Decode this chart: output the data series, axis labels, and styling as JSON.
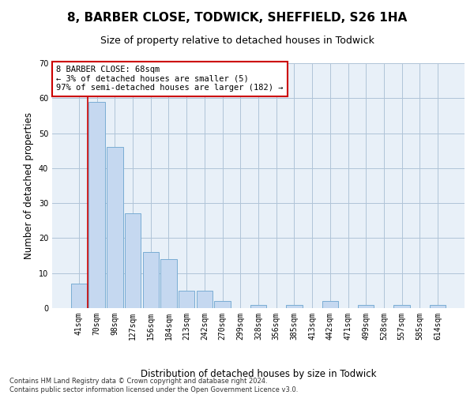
{
  "title": "8, BARBER CLOSE, TODWICK, SHEFFIELD, S26 1HA",
  "subtitle": "Size of property relative to detached houses in Todwick",
  "xlabel": "Distribution of detached houses by size in Todwick",
  "ylabel": "Number of detached properties",
  "categories": [
    "41sqm",
    "70sqm",
    "98sqm",
    "127sqm",
    "156sqm",
    "184sqm",
    "213sqm",
    "242sqm",
    "270sqm",
    "299sqm",
    "328sqm",
    "356sqm",
    "385sqm",
    "413sqm",
    "442sqm",
    "471sqm",
    "499sqm",
    "528sqm",
    "557sqm",
    "585sqm",
    "614sqm"
  ],
  "values": [
    7,
    59,
    46,
    27,
    16,
    14,
    5,
    5,
    2,
    0,
    1,
    0,
    1,
    0,
    2,
    0,
    1,
    0,
    1,
    0,
    1
  ],
  "bar_color": "#c5d8f0",
  "bar_edge_color": "#7aadd4",
  "highlight_line_color": "#cc0000",
  "annotation_text": "8 BARBER CLOSE: 68sqm\n← 3% of detached houses are smaller (5)\n97% of semi-detached houses are larger (182) →",
  "annotation_box_color": "#cc0000",
  "ylim": [
    0,
    70
  ],
  "yticks": [
    0,
    10,
    20,
    30,
    40,
    50,
    60,
    70
  ],
  "grid_color": "#b0c4d8",
  "bg_color": "#e8f0f8",
  "footer_line1": "Contains HM Land Registry data © Crown copyright and database right 2024.",
  "footer_line2": "Contains public sector information licensed under the Open Government Licence v3.0.",
  "title_fontsize": 11,
  "subtitle_fontsize": 9,
  "tick_fontsize": 7,
  "ylabel_fontsize": 8.5,
  "xlabel_fontsize": 8.5,
  "footer_fontsize": 6,
  "annotation_fontsize": 7.5
}
